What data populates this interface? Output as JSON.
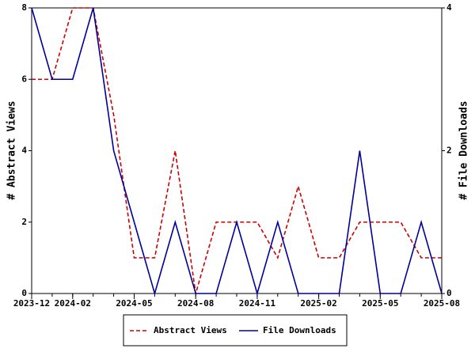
{
  "chart_data": {
    "type": "line",
    "x": [
      "2023-12",
      "2024-01",
      "2024-02",
      "2024-03",
      "2024-04",
      "2024-05",
      "2024-06",
      "2024-07",
      "2024-08",
      "2024-09",
      "2024-10",
      "2024-11",
      "2024-12",
      "2025-01",
      "2025-02",
      "2025-03",
      "2025-04",
      "2025-05",
      "2025-06",
      "2025-07",
      "2025-08"
    ],
    "xticks": [
      "2023-12",
      "2024-02",
      "2024-05",
      "2024-08",
      "2024-11",
      "2025-02",
      "2025-05",
      "2025-08"
    ],
    "ylabel": "# Abstract Views",
    "y2label": "# File Downloads",
    "ylim": [
      0,
      8
    ],
    "yticks": [
      0,
      2,
      4,
      6,
      8
    ],
    "y2lim": [
      0,
      4
    ],
    "y2ticks": [
      0,
      2,
      4
    ],
    "legend": "bottom",
    "series": [
      {
        "name": "Abstract Views",
        "color": "#cc0000",
        "dash": true,
        "values": [
          6,
          6,
          8,
          8,
          5,
          1,
          1,
          4,
          0,
          2,
          2,
          2,
          1,
          3,
          1,
          1,
          2,
          2,
          2,
          1,
          1
        ]
      },
      {
        "name": "File Downloads",
        "color": "#000099",
        "axis": "y2",
        "values": [
          4,
          3,
          3,
          4,
          2,
          1,
          0,
          1,
          0,
          0,
          1,
          0,
          1,
          0,
          0,
          0,
          2,
          0,
          0,
          1,
          0
        ]
      }
    ]
  }
}
